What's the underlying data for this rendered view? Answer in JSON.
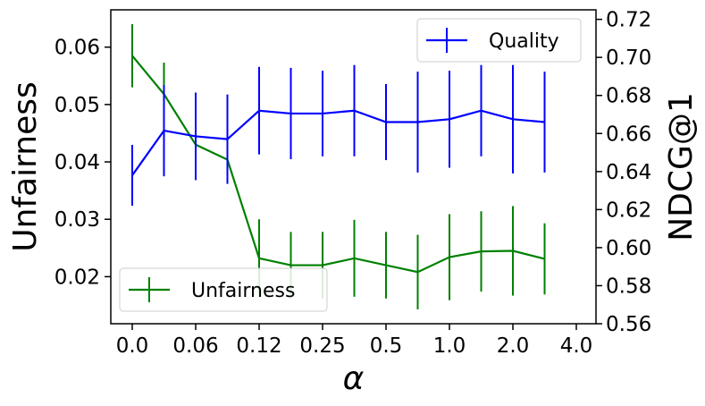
{
  "chart_data": {
    "type": "line",
    "xlabel": "α",
    "ylabel_left": "Unfairness",
    "ylabel_right": "NDCG@1",
    "x_positions": [
      0,
      1,
      2,
      3,
      4,
      5,
      6,
      7,
      8,
      9,
      10,
      11,
      12,
      13,
      14
    ],
    "x_tick_positions": [
      0,
      2,
      4,
      6,
      8,
      10,
      12,
      14
    ],
    "x_tick_labels": [
      "0.0",
      "0.06",
      "0.12",
      "0.25",
      "0.5",
      "1.0",
      "2.0",
      "4.0"
    ],
    "ylim_left": [
      0.0118,
      0.0665
    ],
    "yticks_left": [
      0.02,
      0.03,
      0.04,
      0.05,
      0.06
    ],
    "ylim_right": [
      0.56,
      0.725
    ],
    "yticks_right": [
      0.56,
      0.58,
      0.6,
      0.62,
      0.64,
      0.66,
      0.68,
      0.7,
      0.72
    ],
    "series": [
      {
        "name": "Unfairness",
        "axis": "left",
        "color": "#008000",
        "values": [
          0.0585,
          0.0518,
          0.043,
          0.0404,
          0.0232,
          0.022,
          0.022,
          0.0232,
          0.022,
          0.0208,
          0.0234,
          0.0244,
          0.0245,
          0.0231,
          null
        ],
        "errors": [
          0.0055,
          0.0055,
          0.0013,
          0.002,
          0.0068,
          0.0058,
          0.0058,
          0.0067,
          0.0058,
          0.0065,
          0.0075,
          0.007,
          0.0078,
          0.0062,
          null
        ]
      },
      {
        "name": "Quality",
        "axis": "right",
        "color": "#0000ff",
        "values": [
          0.638,
          0.6615,
          0.6585,
          0.657,
          0.672,
          0.6705,
          0.6705,
          0.672,
          0.666,
          0.666,
          0.6675,
          0.672,
          0.6675,
          0.666,
          null
        ],
        "errors": [
          0.016,
          0.024,
          0.023,
          0.0235,
          0.023,
          0.024,
          0.0225,
          0.024,
          0.02,
          0.0265,
          0.0255,
          0.024,
          0.0285,
          0.0265,
          null
        ]
      }
    ],
    "legends": [
      {
        "position": "top-right",
        "series": "Quality"
      },
      {
        "position": "bottom-left",
        "series": "Unfairness"
      }
    ]
  }
}
